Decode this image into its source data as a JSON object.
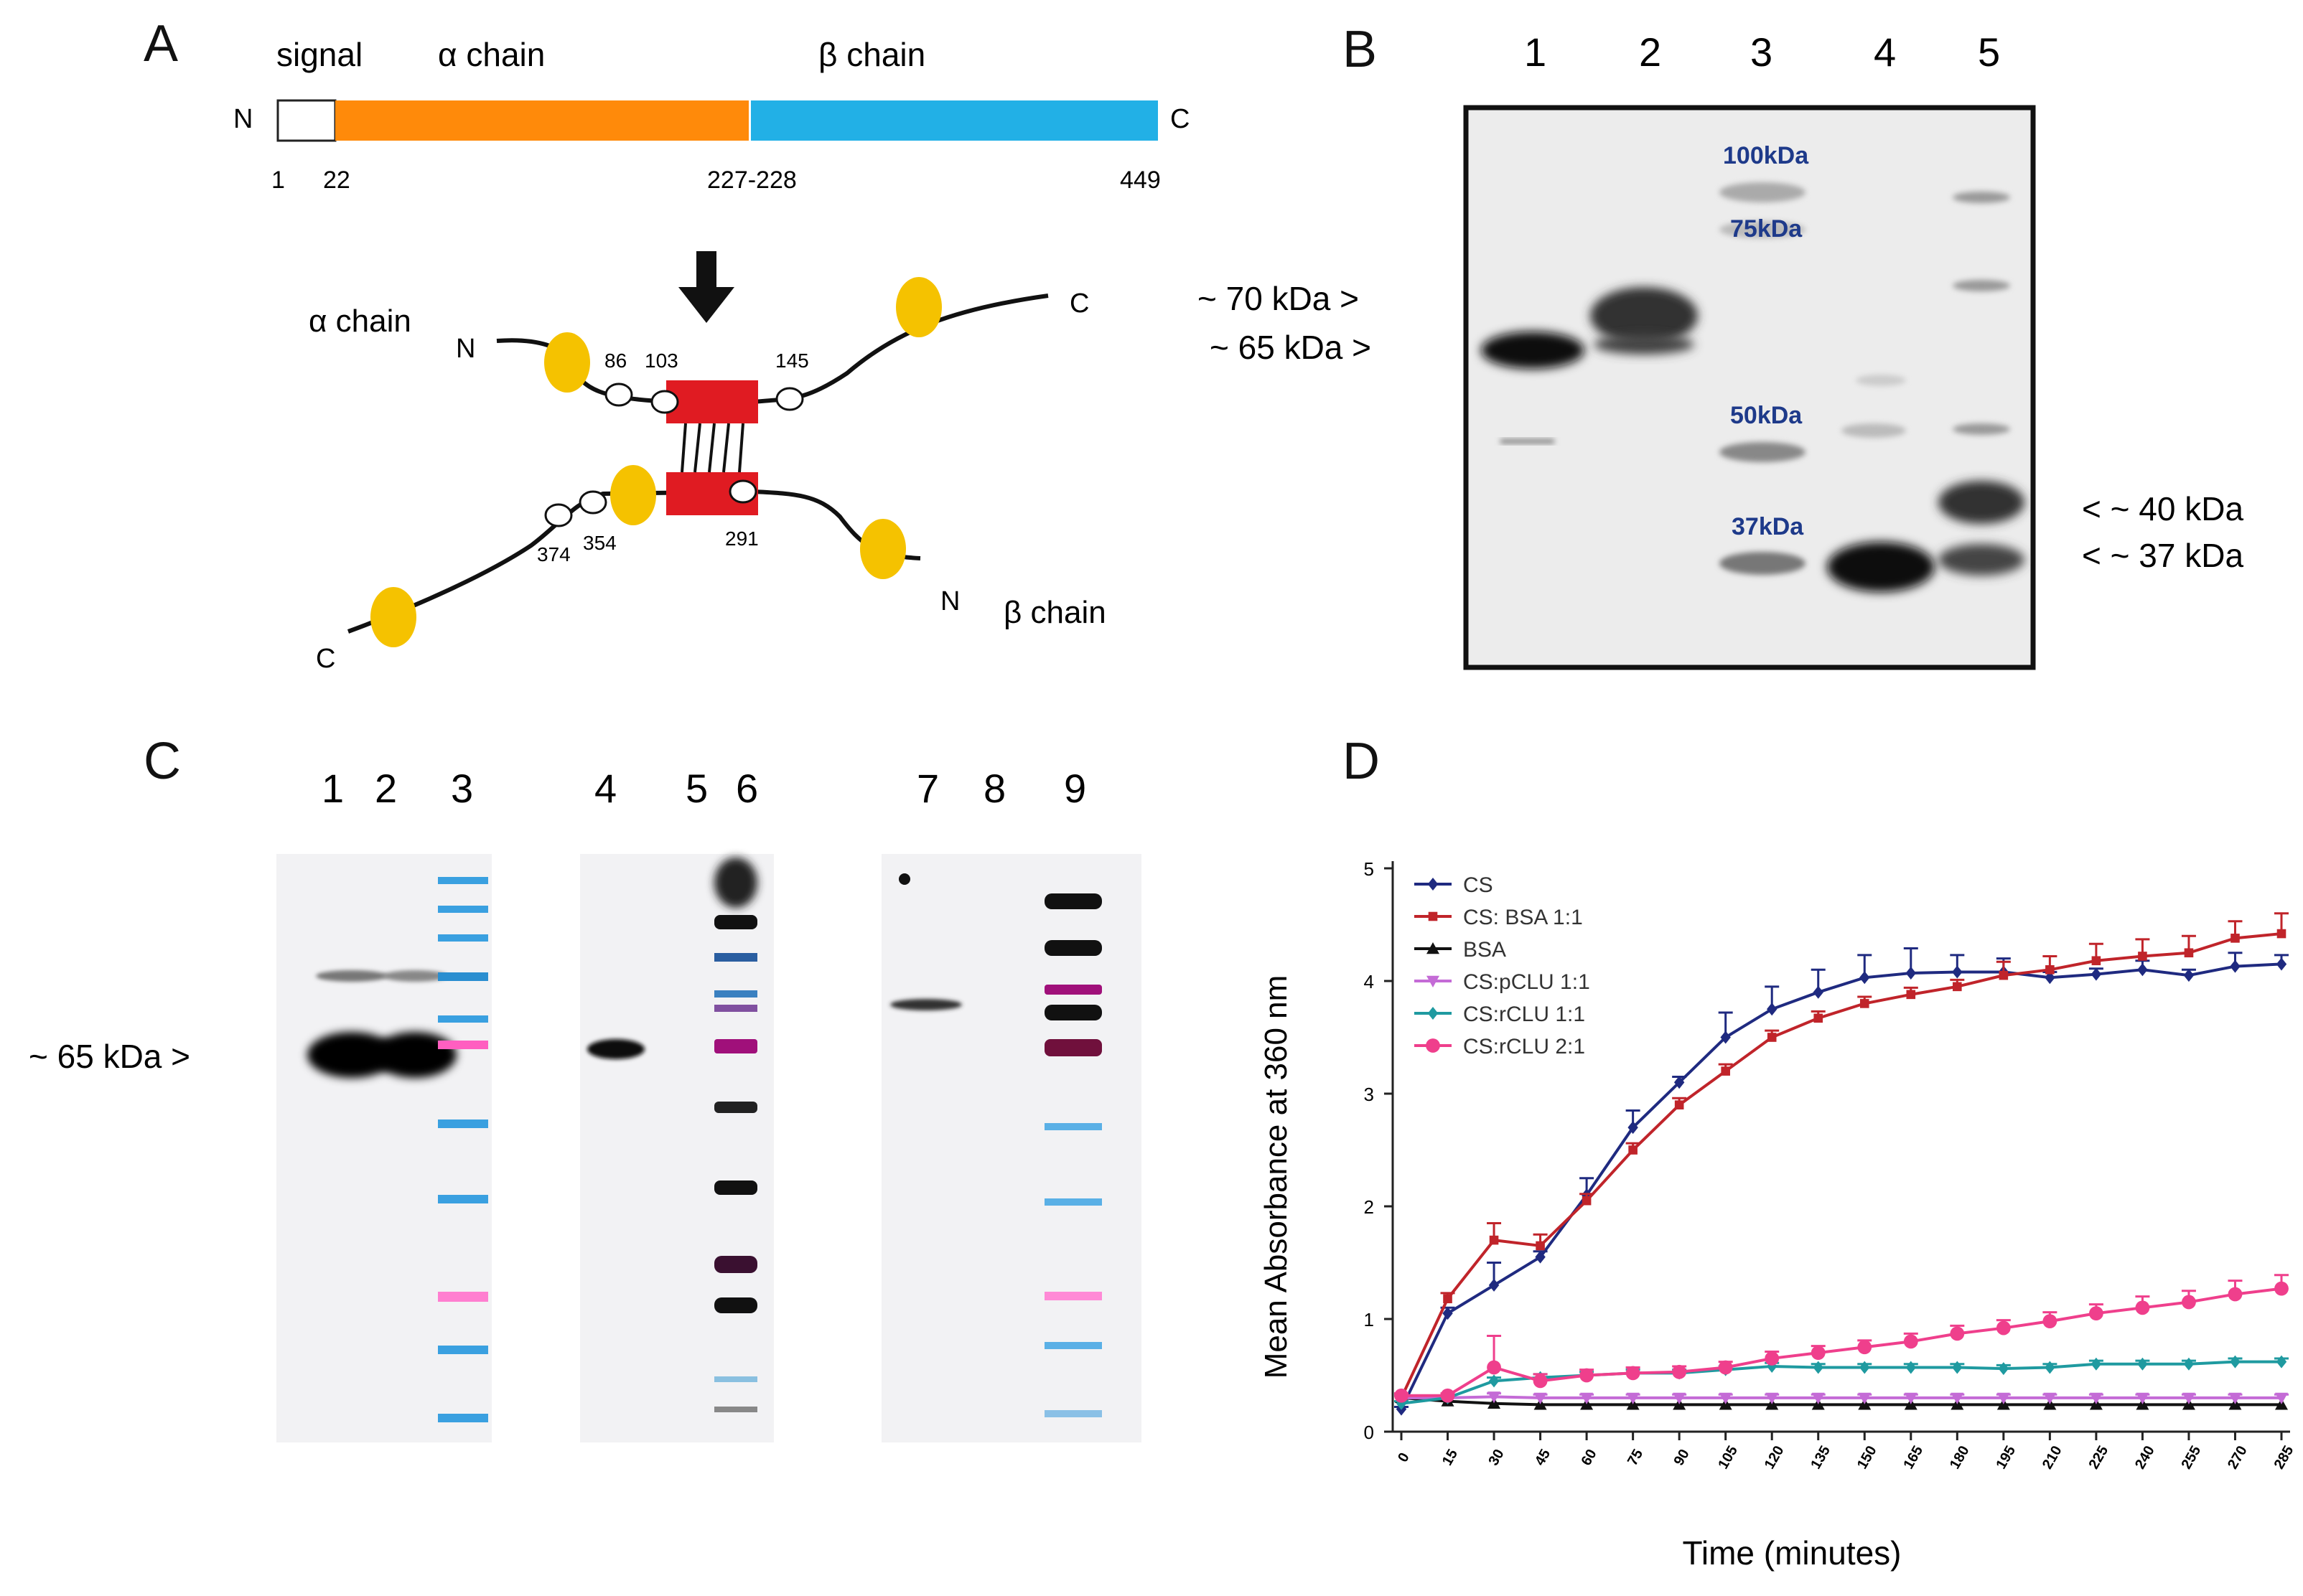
{
  "panels": {
    "A": {
      "label": "A",
      "domain_labels": {
        "signal": "signal",
        "alpha": "α chain",
        "beta": "β chain"
      },
      "terminals": {
        "n": "N",
        "c": "C"
      },
      "positions": [
        "1",
        "22",
        "227-228",
        "449"
      ],
      "domain_colors": {
        "signal": "#ffffff",
        "alpha": "#ff8a0a",
        "beta": "#22b0e6"
      },
      "schematic": {
        "alpha_label": "α chain",
        "beta_label": "β chain",
        "n_alpha": "N",
        "c_alpha": "C",
        "n_beta": "N",
        "c_beta": "C",
        "sites": [
          "86",
          "103",
          "145",
          "374",
          "354",
          "291"
        ],
        "glycan_color": "#f5c200",
        "core_color": "#e01b22"
      }
    },
    "B": {
      "label": "B",
      "lanes": [
        "1",
        "2",
        "3",
        "4",
        "5"
      ],
      "markers": [
        "100kDa",
        "75kDa",
        "50kDa",
        "37kDa"
      ],
      "left_annotations": [
        "~ 70 kDa >",
        "~ 65 kDa >"
      ],
      "right_annotations": [
        "< ~ 40 kDa",
        "< ~ 37 kDa"
      ]
    },
    "C": {
      "label": "C",
      "lanes": [
        "1",
        "2",
        "3",
        "4",
        "5",
        "6",
        "7",
        "8",
        "9"
      ],
      "annotation": "~ 65 kDa >"
    },
    "D": {
      "label": "D"
    }
  },
  "chart_data": {
    "type": "line",
    "title": "",
    "xlabel": "Time (minutes)",
    "ylabel": "Mean Absorbance at 360 nm",
    "x": [
      0,
      15,
      30,
      45,
      60,
      75,
      90,
      105,
      120,
      135,
      150,
      165,
      180,
      195,
      210,
      225,
      240,
      255,
      270,
      285
    ],
    "ylim": [
      0,
      5
    ],
    "yticks": [
      "0",
      "1",
      "2",
      "3",
      "4",
      "5"
    ],
    "legend_position": "top-left",
    "series": [
      {
        "name": "CS",
        "color": "#1f2a80",
        "marker": "diamond",
        "values": [
          0.2,
          1.05,
          1.3,
          1.55,
          2.1,
          2.7,
          3.1,
          3.5,
          3.75,
          3.9,
          4.03,
          4.07,
          4.08,
          4.08,
          4.03,
          4.06,
          4.1,
          4.05,
          4.13,
          4.15
        ],
        "errors": [
          0.02,
          0.05,
          0.2,
          0.05,
          0.15,
          0.15,
          0.05,
          0.22,
          0.2,
          0.2,
          0.2,
          0.22,
          0.15,
          0.12,
          0.05,
          0.05,
          0.08,
          0.05,
          0.12,
          0.08
        ]
      },
      {
        "name": "CS: BSA 1:1",
        "color": "#c0242a",
        "marker": "square",
        "values": [
          0.3,
          1.18,
          1.7,
          1.65,
          2.05,
          2.5,
          2.9,
          3.2,
          3.5,
          3.67,
          3.8,
          3.88,
          3.95,
          4.05,
          4.1,
          4.18,
          4.22,
          4.25,
          4.38,
          4.42
        ],
        "errors": [
          0.02,
          0.05,
          0.15,
          0.1,
          0.06,
          0.06,
          0.06,
          0.06,
          0.06,
          0.06,
          0.06,
          0.06,
          0.06,
          0.12,
          0.12,
          0.15,
          0.15,
          0.15,
          0.15,
          0.18
        ]
      },
      {
        "name": "BSA",
        "color": "#111111",
        "marker": "triangle",
        "values": [
          0.3,
          0.27,
          0.25,
          0.24,
          0.24,
          0.24,
          0.24,
          0.24,
          0.24,
          0.24,
          0.24,
          0.24,
          0.24,
          0.24,
          0.24,
          0.24,
          0.24,
          0.24,
          0.24,
          0.24
        ],
        "errors": [
          0,
          0,
          0,
          0,
          0,
          0,
          0,
          0,
          0,
          0,
          0,
          0,
          0,
          0,
          0,
          0,
          0,
          0,
          0,
          0
        ]
      },
      {
        "name": "CS:pCLU 1:1",
        "color": "#c46bd6",
        "marker": "triangle-down",
        "values": [
          0.3,
          0.3,
          0.31,
          0.3,
          0.3,
          0.3,
          0.3,
          0.3,
          0.3,
          0.3,
          0.3,
          0.3,
          0.3,
          0.3,
          0.3,
          0.3,
          0.3,
          0.3,
          0.3,
          0.3
        ],
        "errors": [
          0.02,
          0.02,
          0.03,
          0.03,
          0.03,
          0.03,
          0.03,
          0.03,
          0.03,
          0.03,
          0.03,
          0.03,
          0.03,
          0.03,
          0.03,
          0.03,
          0.03,
          0.03,
          0.03,
          0.03
        ]
      },
      {
        "name": "CS:rCLU 1:1",
        "color": "#1f9aa0",
        "marker": "diamond",
        "values": [
          0.25,
          0.3,
          0.45,
          0.48,
          0.5,
          0.52,
          0.52,
          0.55,
          0.58,
          0.57,
          0.57,
          0.57,
          0.57,
          0.56,
          0.57,
          0.6,
          0.6,
          0.6,
          0.62,
          0.62
        ],
        "errors": [
          0.02,
          0.02,
          0.03,
          0.03,
          0.03,
          0.03,
          0.03,
          0.03,
          0.03,
          0.03,
          0.03,
          0.03,
          0.03,
          0.03,
          0.03,
          0.03,
          0.03,
          0.03,
          0.03,
          0.03
        ]
      },
      {
        "name": "CS:rCLU 2:1",
        "color": "#ef3f8c",
        "marker": "circle",
        "values": [
          0.32,
          0.32,
          0.57,
          0.45,
          0.5,
          0.52,
          0.53,
          0.57,
          0.65,
          0.7,
          0.75,
          0.8,
          0.87,
          0.92,
          0.98,
          1.05,
          1.1,
          1.15,
          1.22,
          1.27
        ],
        "errors": [
          0.02,
          0.02,
          0.28,
          0.06,
          0.05,
          0.05,
          0.05,
          0.05,
          0.06,
          0.06,
          0.06,
          0.07,
          0.07,
          0.07,
          0.08,
          0.08,
          0.1,
          0.1,
          0.12,
          0.12
        ]
      }
    ]
  }
}
